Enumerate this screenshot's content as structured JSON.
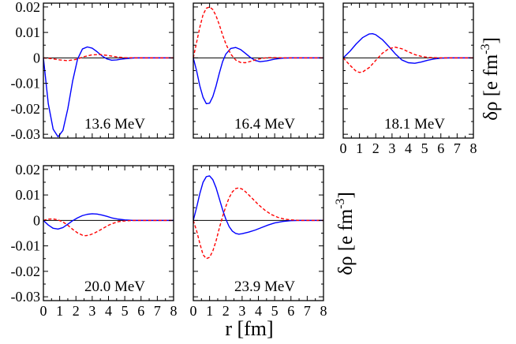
{
  "chart_data": {
    "type": "line",
    "x_axis": {
      "label": "r [fm]",
      "xlim": [
        0,
        8
      ],
      "ticks": [
        0,
        1,
        2,
        3,
        4,
        5,
        6,
        7,
        8
      ],
      "tick_labels": [
        "0",
        "1",
        "2",
        "3",
        "4",
        "5",
        "6",
        "7",
        "8"
      ]
    },
    "y_axis": {
      "label": "δρ [e fm",
      "label_superscript": "-3",
      "label_close": "]",
      "ylim": [
        -0.0315,
        0.0215
      ],
      "ticks": [
        0.02,
        0.01,
        0,
        -0.01,
        -0.02,
        -0.03
      ],
      "tick_labels": [
        "0.02",
        "0.01",
        "0",
        "-0.01",
        "-0.02",
        "-0.03"
      ]
    },
    "panels": [
      {
        "energy_label": "13.6 MeV",
        "series": [
          {
            "name": "solid blue",
            "color": "#0000ff",
            "dash": "solid",
            "x": [
              0,
              0.3,
              0.6,
              0.9,
              1.2,
              1.5,
              1.8,
              2.1,
              2.4,
              2.7,
              3.0,
              3.3,
              3.6,
              3.9,
              4.2,
              4.5,
              4.8,
              5.2,
              5.6,
              6.0,
              6.5,
              7.0,
              8.0
            ],
            "y": [
              0,
              -0.018,
              -0.028,
              -0.031,
              -0.0285,
              -0.02,
              -0.009,
              -0.0005,
              0.0035,
              0.0043,
              0.0038,
              0.0024,
              0.0008,
              -0.0004,
              -0.0009,
              -0.0008,
              -0.0005,
              -0.0002,
              0,
              0,
              0,
              0,
              0
            ]
          },
          {
            "name": "dashed red",
            "color": "#ff0000",
            "dash": "dashed",
            "x": [
              0,
              0.5,
              1.0,
              1.5,
              2.0,
              2.5,
              3.0,
              3.5,
              4.0,
              4.5,
              5.0,
              5.5,
              6.0,
              7.0,
              8.0
            ],
            "y": [
              0,
              -0.0003,
              -0.0008,
              -0.0011,
              -0.0006,
              0.0005,
              0.0012,
              0.0013,
              0.0009,
              0.0004,
              0.0001,
              0,
              0,
              0,
              0
            ]
          }
        ]
      },
      {
        "energy_label": "16.4 MeV",
        "series": [
          {
            "name": "solid blue",
            "color": "#0000ff",
            "dash": "solid",
            "x": [
              0,
              0.2,
              0.4,
              0.6,
              0.8,
              1.0,
              1.2,
              1.4,
              1.6,
              1.8,
              2.0,
              2.3,
              2.6,
              2.9,
              3.2,
              3.5,
              3.8,
              4.1,
              4.5,
              5.0,
              5.5,
              6.0,
              7.0,
              8.0
            ],
            "y": [
              0,
              -0.005,
              -0.011,
              -0.0155,
              -0.018,
              -0.0178,
              -0.0152,
              -0.011,
              -0.006,
              -0.0015,
              0.0015,
              0.0037,
              0.0041,
              0.0033,
              0.0018,
              0.0002,
              -0.001,
              -0.0015,
              -0.0012,
              -0.0005,
              -0.0001,
              0,
              0,
              0
            ]
          },
          {
            "name": "dashed red",
            "color": "#ff0000",
            "dash": "dashed",
            "x": [
              0,
              0.2,
              0.4,
              0.6,
              0.8,
              1.0,
              1.2,
              1.4,
              1.6,
              1.8,
              2.0,
              2.3,
              2.6,
              2.9,
              3.2,
              3.5,
              3.8,
              4.2,
              4.6,
              5.0,
              5.5,
              6.0,
              7.0,
              8.0
            ],
            "y": [
              0,
              0.006,
              0.012,
              0.017,
              0.0195,
              0.02,
              0.019,
              0.0165,
              0.013,
              0.009,
              0.0055,
              0.0015,
              -0.0008,
              -0.0018,
              -0.0019,
              -0.0014,
              -0.0008,
              -0.0002,
              0.0001,
              0.0001,
              0,
              0,
              0,
              0
            ]
          }
        ]
      },
      {
        "energy_label": "18.1 MeV",
        "series": [
          {
            "name": "solid blue",
            "color": "#0000ff",
            "dash": "solid",
            "x": [
              0,
              0.4,
              0.8,
              1.2,
              1.6,
              1.8,
              2.0,
              2.4,
              2.8,
              3.2,
              3.6,
              4.0,
              4.4,
              4.8,
              5.2,
              5.6,
              6.0,
              6.5,
              7.0,
              8.0
            ],
            "y": [
              0,
              0.0025,
              0.0055,
              0.008,
              0.0094,
              0.0095,
              0.0091,
              0.0072,
              0.0045,
              0.0016,
              -0.0008,
              -0.0019,
              -0.0021,
              -0.0016,
              -0.0009,
              -0.0004,
              -0.0001,
              0,
              0,
              0
            ]
          },
          {
            "name": "dashed red",
            "color": "#ff0000",
            "dash": "dashed",
            "x": [
              0,
              0.4,
              0.8,
              1.0,
              1.2,
              1.6,
              2.0,
              2.4,
              2.8,
              3.2,
              3.6,
              4.0,
              4.4,
              4.8,
              5.2,
              5.6,
              6.0,
              6.5,
              7.0,
              8.0
            ],
            "y": [
              0,
              -0.0028,
              -0.0053,
              -0.0057,
              -0.0055,
              -0.0038,
              -0.001,
              0.0018,
              0.0036,
              0.0042,
              0.0036,
              0.0024,
              0.0013,
              0.0006,
              0.0002,
              0.0001,
              0,
              0,
              0,
              0
            ]
          }
        ]
      },
      {
        "energy_label": "20.0 MeV",
        "series": [
          {
            "name": "solid blue",
            "color": "#0000ff",
            "dash": "solid",
            "x": [
              0,
              0.3,
              0.6,
              0.9,
              1.2,
              1.5,
              1.8,
              2.1,
              2.4,
              2.7,
              3.0,
              3.3,
              3.6,
              3.9,
              4.2,
              4.6,
              5.0,
              5.5,
              6.0,
              6.5,
              7.0,
              8.0
            ],
            "y": [
              0,
              -0.0018,
              -0.0031,
              -0.0034,
              -0.0028,
              -0.0015,
              -0.0001,
              0.001,
              0.0019,
              0.0024,
              0.0026,
              0.0025,
              0.0021,
              0.0016,
              0.001,
              0.0005,
              0.0002,
              0,
              0,
              0,
              0,
              0
            ]
          },
          {
            "name": "dashed red",
            "color": "#ff0000",
            "dash": "dashed",
            "x": [
              0,
              0.3,
              0.6,
              0.9,
              1.2,
              1.5,
              1.8,
              2.1,
              2.4,
              2.6,
              2.8,
              3.1,
              3.4,
              3.7,
              4.0,
              4.3,
              4.6,
              5.0,
              5.5,
              6.0,
              7.0,
              8.0
            ],
            "y": [
              0,
              0.0005,
              0.0006,
              0.0002,
              -0.0006,
              -0.0019,
              -0.0035,
              -0.0049,
              -0.0058,
              -0.006,
              -0.0058,
              -0.0051,
              -0.0041,
              -0.003,
              -0.0019,
              -0.0011,
              -0.0005,
              -0.0002,
              0,
              0,
              0,
              0
            ]
          }
        ]
      },
      {
        "energy_label": "23.9 MeV",
        "series": [
          {
            "name": "solid blue",
            "color": "#0000ff",
            "dash": "solid",
            "x": [
              0,
              0.2,
              0.4,
              0.6,
              0.8,
              1.0,
              1.2,
              1.4,
              1.6,
              1.8,
              2.0,
              2.2,
              2.4,
              2.6,
              2.8,
              3.0,
              3.4,
              3.8,
              4.2,
              4.6,
              5.0,
              5.5,
              6.0,
              6.5,
              7.0,
              8.0
            ],
            "y": [
              0,
              0.005,
              0.0105,
              0.015,
              0.0172,
              0.0175,
              0.016,
              0.0128,
              0.0085,
              0.0042,
              0.0005,
              -0.0024,
              -0.0042,
              -0.0051,
              -0.0054,
              -0.0052,
              -0.0046,
              -0.0038,
              -0.0028,
              -0.0018,
              -0.001,
              -0.0004,
              -0.0001,
              0,
              0,
              0
            ]
          },
          {
            "name": "dashed red",
            "color": "#ff0000",
            "dash": "dashed",
            "x": [
              0,
              0.2,
              0.4,
              0.6,
              0.8,
              1.0,
              1.2,
              1.4,
              1.6,
              1.8,
              2.0,
              2.2,
              2.4,
              2.6,
              2.8,
              3.0,
              3.2,
              3.6,
              4.0,
              4.4,
              4.8,
              5.2,
              5.6,
              6.0,
              6.5,
              7.0,
              8.0
            ],
            "y": [
              0,
              -0.004,
              -0.009,
              -0.0135,
              -0.015,
              -0.0145,
              -0.012,
              -0.008,
              -0.003,
              0.0015,
              0.0055,
              0.0089,
              0.0112,
              0.0125,
              0.0128,
              0.0123,
              0.0113,
              0.0088,
              0.0062,
              0.004,
              0.0023,
              0.0012,
              0.0005,
              0.0002,
              0,
              0,
              0
            ]
          }
        ]
      }
    ]
  }
}
